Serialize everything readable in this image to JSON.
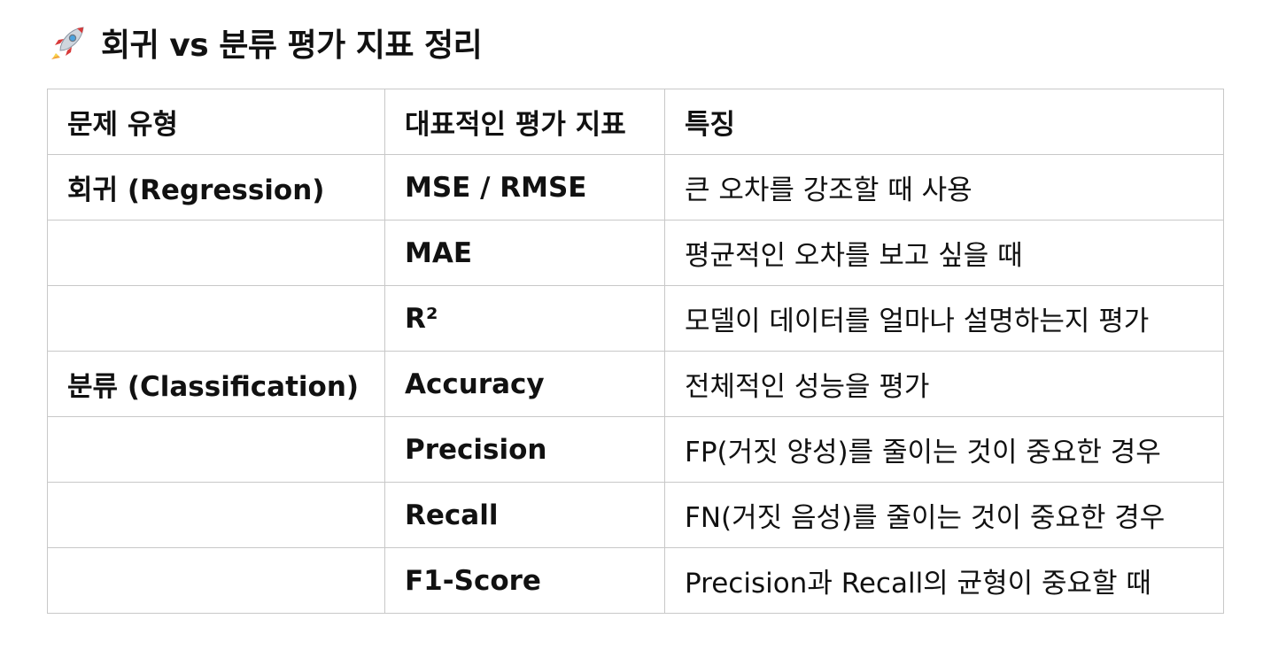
{
  "title": {
    "icon": "rocket-icon",
    "text": "회귀 vs 분류 평가 지표 정리"
  },
  "table": {
    "headers": [
      "문제 유형",
      "대표적인 평가 지표",
      "특징"
    ],
    "rows": [
      {
        "type": "회귀 (Regression)",
        "metric": "MSE / RMSE",
        "desc": "큰 오차를 강조할 때 사용"
      },
      {
        "type": "",
        "metric": "MAE",
        "desc": "평균적인 오차를 보고 싶을 때"
      },
      {
        "type": "",
        "metric": "R²",
        "desc": "모델이 데이터를 얼마나 설명하는지 평가"
      },
      {
        "type": "분류 (Classification)",
        "metric": "Accuracy",
        "desc": "전체적인 성능을 평가"
      },
      {
        "type": "",
        "metric": "Precision",
        "desc": "FP(거짓 양성)를 줄이는 것이 중요한 경우"
      },
      {
        "type": "",
        "metric": "Recall",
        "desc": "FN(거짓 음성)를 줄이는 것이 중요한 경우"
      },
      {
        "type": "",
        "metric": "F1-Score",
        "desc": "Precision과 Recall의 균형이 중요할 때"
      }
    ]
  }
}
